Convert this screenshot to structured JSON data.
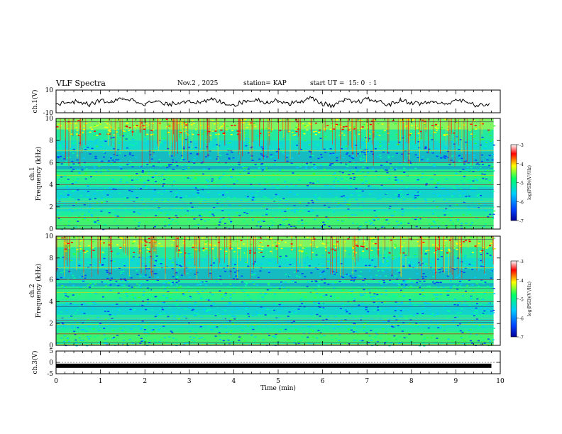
{
  "header": {
    "title": "VLF Spectra",
    "date": "Nov.2 , 2025",
    "station": "station= KAP",
    "start": "start UT =  15: 0  : 1"
  },
  "chart_data": [
    {
      "type": "line",
      "title": "",
      "ylabel": "ch.1(V)",
      "ylim": [
        -10,
        10
      ],
      "yticks": [
        "10",
        "-10"
      ],
      "xlim": [
        0,
        10
      ],
      "x": [
        0,
        0.25,
        0.5,
        0.75,
        1,
        1.25,
        1.5,
        1.75,
        2,
        2.25,
        2.5,
        2.75,
        3,
        3.25,
        3.5,
        3.75,
        4,
        4.25,
        4.5,
        4.75,
        5,
        5.25,
        5.5,
        5.75,
        6,
        6.25,
        6.5,
        6.75,
        7,
        7.25,
        7.5,
        7.75,
        8,
        8.25,
        8.5,
        8.75,
        9,
        9.25,
        9.5,
        9.75
      ],
      "values": [
        -2,
        -1,
        0,
        -3,
        1,
        -1,
        3,
        1,
        -2,
        0,
        -3,
        -1,
        1,
        -2,
        2,
        -1,
        -3,
        0,
        2,
        -1,
        1,
        -2,
        0,
        3,
        -2,
        -4,
        1,
        -1,
        2,
        0,
        -3,
        1,
        -1,
        -2,
        0,
        -3,
        2,
        -1,
        -4,
        -2
      ]
    },
    {
      "type": "heatmap",
      "title": "",
      "ylabel": "ch.1  Frequency (kHz)",
      "ylim": [
        0,
        10
      ],
      "yticks": [
        "0",
        "2",
        "4",
        "6",
        "8",
        "10"
      ],
      "xlim": [
        0,
        10
      ],
      "colorbar": {
        "label": "log(PSD)(V²/Hz)",
        "range": [
          -7,
          -3
        ],
        "ticks": [
          "-3",
          "-4",
          "-5",
          "-6",
          "-7"
        ]
      }
    },
    {
      "type": "heatmap",
      "title": "",
      "ylabel": "ch.2  Frequency (kHz)",
      "ylim": [
        0,
        10
      ],
      "yticks": [
        "0",
        "2",
        "4",
        "6",
        "8",
        "10"
      ],
      "xlim": [
        0,
        10
      ],
      "colorbar": {
        "label": "log(PSD)(V²/Hz)",
        "range": [
          -7,
          -3
        ],
        "ticks": [
          "-3",
          "-4",
          "-5",
          "-6",
          "-7"
        ]
      }
    },
    {
      "type": "line",
      "title": "",
      "ylabel": "ch.3(V)",
      "ylim": [
        -5,
        5
      ],
      "yticks": [
        "5",
        "0",
        "-5"
      ],
      "xlim": [
        0,
        10
      ],
      "xlabel": "Time (min)",
      "xticks": [
        "0",
        "1",
        "2",
        "3",
        "4",
        "5",
        "6",
        "7",
        "8",
        "9",
        "10"
      ],
      "x": [
        0,
        9.8
      ],
      "values": [
        -1.5,
        -1.5
      ]
    }
  ],
  "colors": {
    "spectrogram_base": "#22e8a0",
    "colormap": [
      "#000099",
      "#0044ff",
      "#00ccff",
      "#00ff66",
      "#ffff00",
      "#ff0000",
      "#ffffff"
    ]
  }
}
